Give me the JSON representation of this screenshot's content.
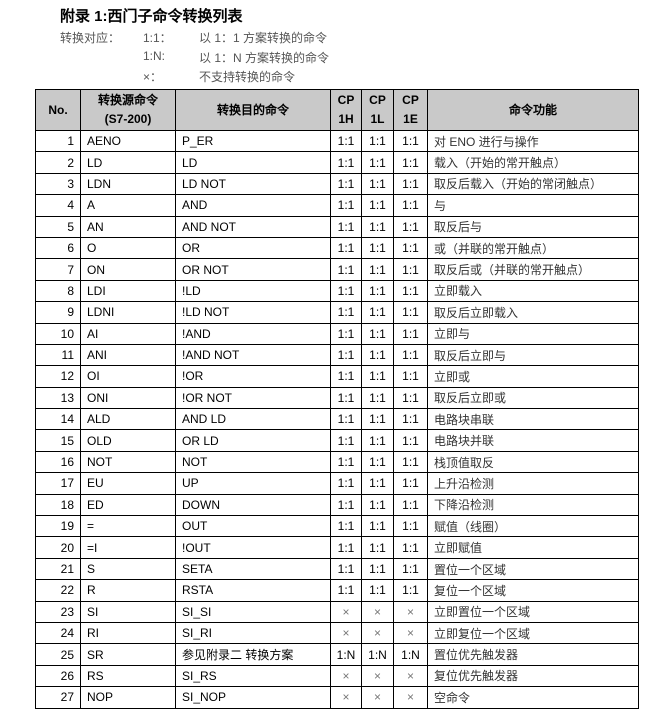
{
  "header": {
    "title": "附录 1:西门子命令转换列表",
    "legend_label": "转换对应：",
    "legend": [
      {
        "key": "1:1：",
        "desc": "以 1：1 方案转换的命令"
      },
      {
        "key": "1:N:",
        "desc": "以 1：N 方案转换的命令"
      },
      {
        "key": "×：",
        "desc": "不支持转换的命令"
      }
    ]
  },
  "table": {
    "columns": [
      [
        "No."
      ],
      [
        "转换源命令",
        "(S7-200)"
      ],
      [
        "转换目的命令"
      ],
      [
        "CP",
        "1H"
      ],
      [
        "CP",
        "1L"
      ],
      [
        "CP",
        "1E"
      ],
      [
        "命令功能"
      ]
    ],
    "rows": [
      [
        1,
        "AENO",
        "P_ER",
        "1:1",
        "1:1",
        "1:1",
        "对 ENO 进行与操作"
      ],
      [
        2,
        "LD",
        "LD",
        "1:1",
        "1:1",
        "1:1",
        "载入（开始的常开触点）"
      ],
      [
        3,
        "LDN",
        "LD NOT",
        "1:1",
        "1:1",
        "1:1",
        "取反后载入（开始的常闭触点）"
      ],
      [
        4,
        "A",
        "AND",
        "1:1",
        "1:1",
        "1:1",
        "与"
      ],
      [
        5,
        "AN",
        "AND NOT",
        "1:1",
        "1:1",
        "1:1",
        "取反后与"
      ],
      [
        6,
        "O",
        "OR",
        "1:1",
        "1:1",
        "1:1",
        "或（并联的常开触点）"
      ],
      [
        7,
        "ON",
        "OR NOT",
        "1:1",
        "1:1",
        "1:1",
        "取反后或（并联的常开触点）"
      ],
      [
        8,
        "LDI",
        "!LD",
        "1:1",
        "1:1",
        "1:1",
        "立即载入"
      ],
      [
        9,
        "LDNI",
        "!LD NOT",
        "1:1",
        "1:1",
        "1:1",
        "取反后立即载入"
      ],
      [
        10,
        "AI",
        "!AND",
        "1:1",
        "1:1",
        "1:1",
        "立即与"
      ],
      [
        11,
        "ANI",
        "!AND NOT",
        "1:1",
        "1:1",
        "1:1",
        "取反后立即与"
      ],
      [
        12,
        "OI",
        "!OR",
        "1:1",
        "1:1",
        "1:1",
        "立即或"
      ],
      [
        13,
        "ONI",
        "!OR NOT",
        "1:1",
        "1:1",
        "1:1",
        "取反后立即或"
      ],
      [
        14,
        "ALD",
        "AND LD",
        "1:1",
        "1:1",
        "1:1",
        "电路块串联"
      ],
      [
        15,
        "OLD",
        "OR LD",
        "1:1",
        "1:1",
        "1:1",
        "电路块并联"
      ],
      [
        16,
        "NOT",
        "NOT",
        "1:1",
        "1:1",
        "1:1",
        "栈顶值取反"
      ],
      [
        17,
        "EU",
        "UP",
        "1:1",
        "1:1",
        "1:1",
        "上升沿检测"
      ],
      [
        18,
        "ED",
        "DOWN",
        "1:1",
        "1:1",
        "1:1",
        "下降沿检测"
      ],
      [
        19,
        "=",
        "OUT",
        "1:1",
        "1:1",
        "1:1",
        "赋值（线圈）"
      ],
      [
        20,
        "=I",
        "!OUT",
        "1:1",
        "1:1",
        "1:1",
        "立即赋值"
      ],
      [
        21,
        "S",
        "SETA",
        "1:1",
        "1:1",
        "1:1",
        "置位一个区域"
      ],
      [
        22,
        "R",
        "RSTA",
        "1:1",
        "1:1",
        "1:1",
        "复位一个区域"
      ],
      [
        23,
        "SI",
        "SI_SI",
        "×",
        "×",
        "×",
        "立即置位一个区域"
      ],
      [
        24,
        "RI",
        "SI_RI",
        "×",
        "×",
        "×",
        "立即复位一个区域"
      ],
      [
        25,
        "SR",
        "参见附录二 转换方案",
        "1:N",
        "1:N",
        "1:N",
        "置位优先触发器"
      ],
      [
        26,
        "RS",
        "SI_RS",
        "×",
        "×",
        "×",
        "复位优先触发器"
      ],
      [
        27,
        "NOP",
        "SI_NOP",
        "×",
        "×",
        "×",
        "空命令"
      ]
    ]
  }
}
